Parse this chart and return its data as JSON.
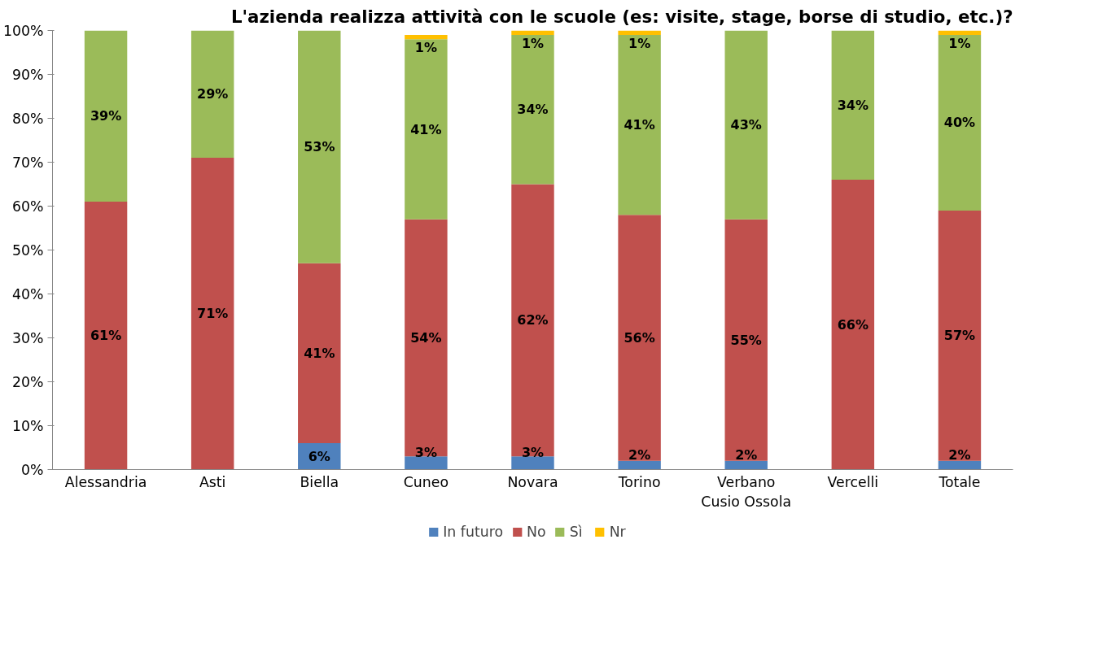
{
  "chart_data": {
    "type": "bar",
    "stacked": true,
    "title": "L'azienda realizza attività con le scuole (es: visite, stage, borse di studio, etc.)?",
    "categories": [
      "Alessandria",
      "Asti",
      "Biella",
      "Cuneo",
      "Novara",
      "Torino",
      "Verbano\nCusio Ossola",
      "Vercelli",
      "Totale"
    ],
    "series": [
      {
        "name": "In futuro",
        "color": "#4f81bd",
        "values": [
          null,
          null,
          6,
          3,
          3,
          2,
          2,
          null,
          2
        ],
        "value_labels": [
          null,
          null,
          "6%",
          "3%",
          "3%",
          "2%",
          "2%",
          null,
          "2%"
        ]
      },
      {
        "name": "No",
        "color": "#c0504d",
        "values": [
          61,
          71,
          41,
          54,
          62,
          56,
          55,
          66,
          57
        ],
        "value_labels": [
          "61%",
          "71%",
          "41%",
          "54%",
          "62%",
          "56%",
          "55%",
          "66%",
          "57%"
        ]
      },
      {
        "name": "Sì",
        "color": "#9bbb59",
        "values": [
          39,
          29,
          53,
          41,
          34,
          41,
          43,
          34,
          40
        ],
        "value_labels": [
          "39%",
          "29%",
          "53%",
          "41%",
          "34%",
          "41%",
          "43%",
          "34%",
          "40%"
        ]
      },
      {
        "name": "Nr",
        "color": "#ffc000",
        "values": [
          null,
          null,
          null,
          1,
          1,
          1,
          null,
          null,
          1
        ],
        "value_labels": [
          null,
          null,
          null,
          "1%",
          "1%",
          "1%",
          null,
          null,
          "1%"
        ]
      }
    ],
    "ylim": [
      0,
      100
    ],
    "yticks": [
      {
        "value": 0,
        "label": "0%"
      },
      {
        "value": 10,
        "label": "10%"
      },
      {
        "value": 20,
        "label": "20%"
      },
      {
        "value": 30,
        "label": "30%"
      },
      {
        "value": 40,
        "label": "40%"
      },
      {
        "value": 50,
        "label": "50%"
      },
      {
        "value": 60,
        "label": "60%"
      },
      {
        "value": 70,
        "label": "70%"
      },
      {
        "value": 80,
        "label": "80%"
      },
      {
        "value": 90,
        "label": "90%"
      },
      {
        "value": 100,
        "label": "100%"
      }
    ],
    "grid": false,
    "legend": "bottom"
  }
}
